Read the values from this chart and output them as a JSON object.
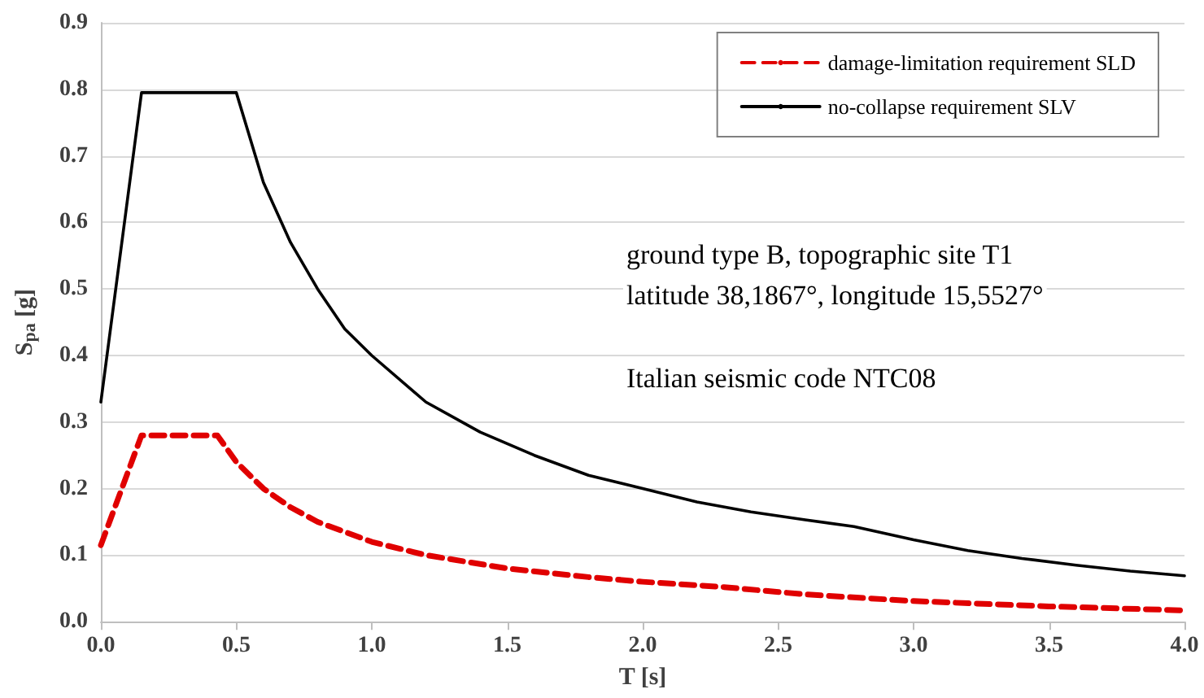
{
  "chart_data": {
    "type": "line",
    "xlabel": "T [s]",
    "ylabel": "S$_{pa}$ [g]",
    "xlim": [
      0,
      4
    ],
    "ylim": [
      0,
      0.9
    ],
    "xticks": [
      {
        "value": 0,
        "label": "0.0"
      },
      {
        "value": 0.5,
        "label": "0.5"
      },
      {
        "value": 1,
        "label": "1.0"
      },
      {
        "value": 1.5,
        "label": "1.5"
      },
      {
        "value": 2,
        "label": "2.0"
      },
      {
        "value": 2.5,
        "label": "2.5"
      },
      {
        "value": 3,
        "label": "3.0"
      },
      {
        "value": 3.5,
        "label": "3.5"
      },
      {
        "value": 4,
        "label": "4.0"
      }
    ],
    "yticks": [
      {
        "value": 0,
        "label": "0.0"
      },
      0.1,
      0.2,
      0.3,
      0.4,
      0.5,
      0.6,
      0.7,
      0.8,
      0.9
    ],
    "grid": "y",
    "legend": "top right",
    "marker": "none",
    "annotations": [
      "ground type B, topographic site T1",
      "latitude 38,1867°, longitude 15,5527°",
      "Italian seismic code NTC08"
    ],
    "series": [
      {
        "name": "damage-limitation requirement SLD",
        "color": "#e00000",
        "line_style": "dashed",
        "x": [
          0,
          0.15,
          0.43,
          0.5,
          0.6,
          0.7,
          0.8,
          1.0,
          1.2,
          1.5,
          1.8,
          2.0,
          2.3,
          2.6,
          3.0,
          3.5,
          4.0
        ],
        "values": [
          0.115,
          0.28,
          0.28,
          0.24,
          0.2,
          0.172,
          0.15,
          0.12,
          0.1,
          0.08,
          0.067,
          0.06,
          0.052,
          0.041,
          0.031,
          0.023,
          0.017
        ]
      },
      {
        "name": "no-collapse requirement SLV",
        "color": "#000000",
        "line_style": "solid",
        "x": [
          0,
          0.15,
          0.5,
          0.6,
          0.7,
          0.8,
          0.9,
          1.0,
          1.2,
          1.4,
          1.6,
          1.8,
          2.0,
          2.2,
          2.4,
          2.6,
          2.78,
          3.0,
          3.2,
          3.4,
          3.6,
          3.8,
          4.0
        ],
        "values": [
          0.33,
          0.795,
          0.795,
          0.66,
          0.57,
          0.5,
          0.44,
          0.4,
          0.33,
          0.285,
          0.25,
          0.22,
          0.2,
          0.18,
          0.165,
          0.153,
          0.143,
          0.123,
          0.107,
          0.095,
          0.085,
          0.076,
          0.069
        ]
      }
    ]
  }
}
